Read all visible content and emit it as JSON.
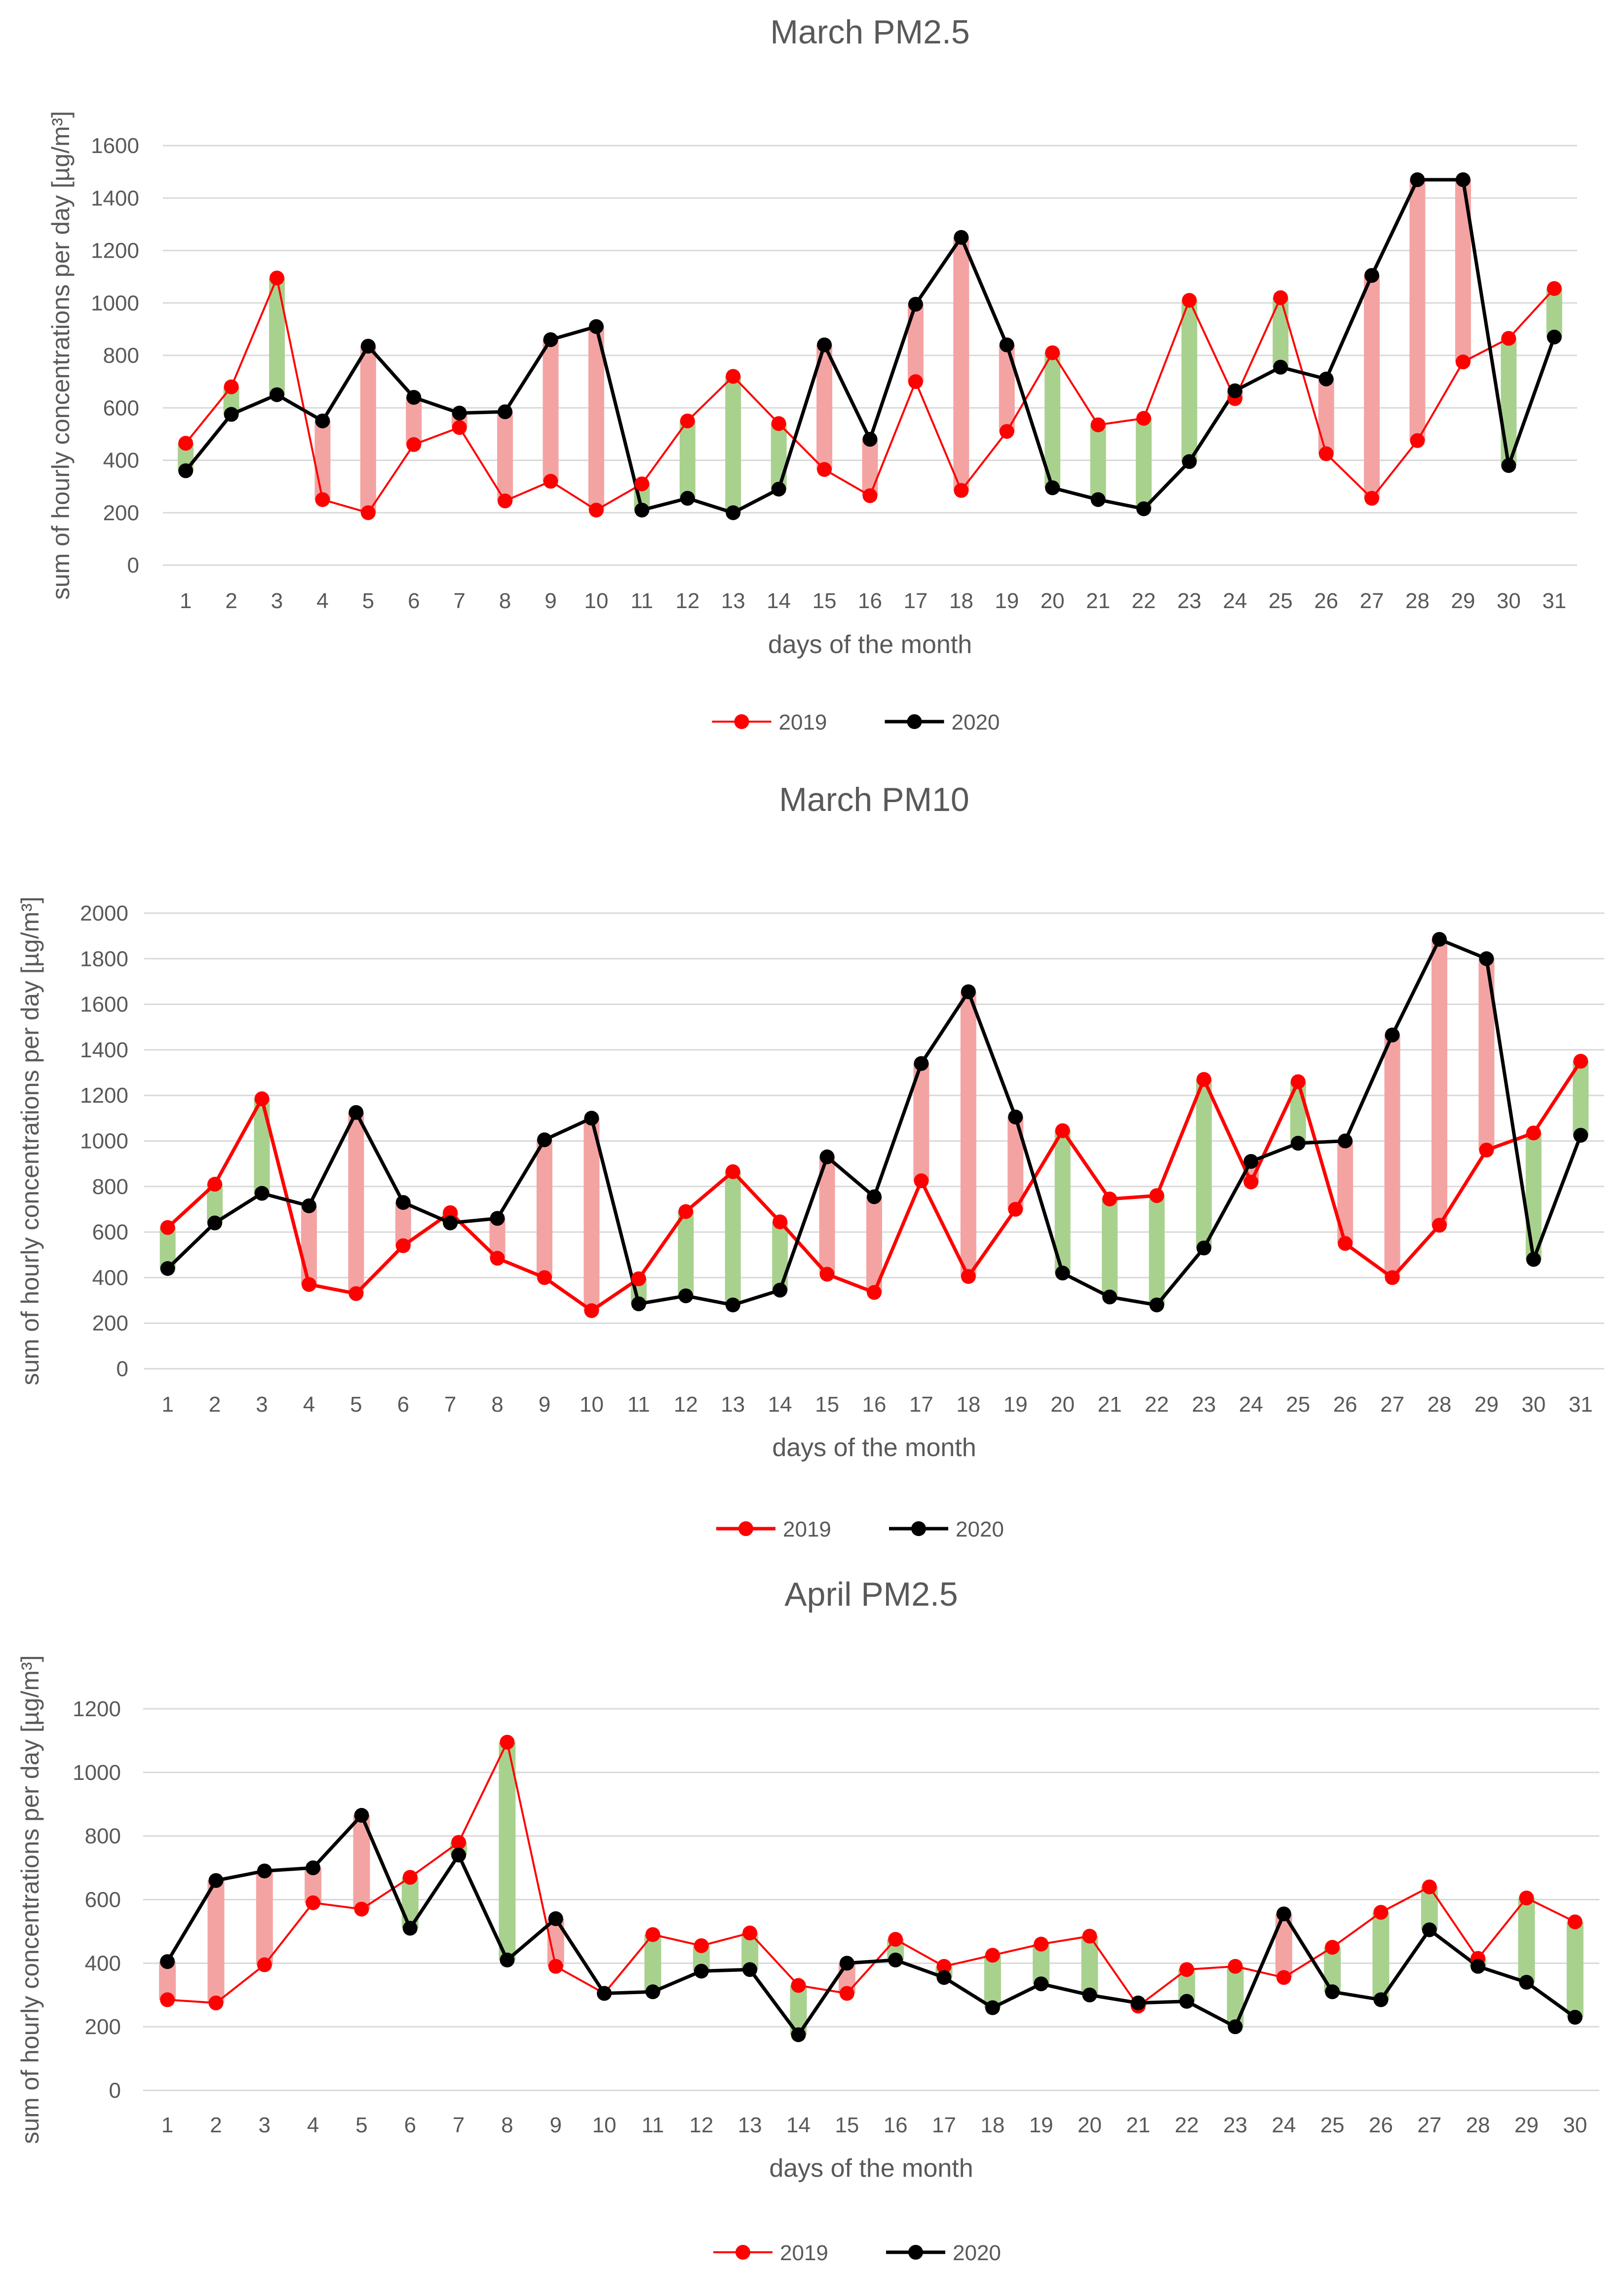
{
  "colors": {
    "series_2019": "#ff0000",
    "series_2020": "#000000",
    "increase_bar": "#f4a3a3",
    "decrease_bar": "#a9d18e",
    "grid": "#d9d9d9",
    "text": "#595959"
  },
  "chart_data": [
    {
      "type": "line",
      "title": "March PM2.5",
      "xlabel": "days of the month",
      "ylabel": "sum of hourly concentrations per day [µg/m³]",
      "ylim": [
        0,
        1600
      ],
      "ytick_step": 200,
      "ytick_labels": [
        "0",
        "200",
        "400",
        "600",
        "800",
        "1000",
        "1200",
        "1400",
        "1600"
      ],
      "grid": true,
      "legend_position": "bottom-center",
      "x": [
        1,
        2,
        3,
        4,
        5,
        6,
        7,
        8,
        9,
        10,
        11,
        12,
        13,
        14,
        15,
        16,
        17,
        18,
        19,
        20,
        21,
        22,
        23,
        24,
        25,
        26,
        27,
        28,
        29,
        30,
        31
      ],
      "series": [
        {
          "name": "2019",
          "values": [
            465,
            680,
            1095,
            250,
            200,
            460,
            525,
            245,
            320,
            210,
            310,
            550,
            720,
            540,
            365,
            265,
            700,
            285,
            510,
            810,
            535,
            560,
            1010,
            635,
            1020,
            425,
            255,
            475,
            775,
            865,
            1055
          ]
        },
        {
          "name": "2020",
          "values": [
            360,
            575,
            650,
            550,
            835,
            640,
            580,
            585,
            860,
            910,
            210,
            255,
            200,
            290,
            840,
            480,
            995,
            1250,
            840,
            295,
            250,
            215,
            395,
            665,
            755,
            710,
            1105,
            1470,
            1470,
            380,
            870
          ]
        }
      ]
    },
    {
      "type": "line",
      "title": "March PM10",
      "xlabel": "days of the month",
      "ylabel": "sum of hourly concentrations per day [µg/m³]",
      "ylim": [
        0,
        2000
      ],
      "ytick_step": 200,
      "ytick_labels": [
        "0",
        "200",
        "400",
        "600",
        "800",
        "1000",
        "1200",
        "1400",
        "1600",
        "1800",
        "2000"
      ],
      "grid": true,
      "legend_position": "bottom-center",
      "x": [
        1,
        2,
        3,
        4,
        5,
        6,
        7,
        8,
        9,
        10,
        11,
        12,
        13,
        14,
        15,
        16,
        17,
        18,
        19,
        20,
        21,
        22,
        23,
        24,
        25,
        26,
        27,
        28,
        29,
        30,
        31
      ],
      "series": [
        {
          "name": "2019",
          "values": [
            620,
            810,
            1185,
            370,
            330,
            540,
            685,
            485,
            400,
            255,
            395,
            690,
            865,
            645,
            415,
            335,
            825,
            405,
            700,
            1045,
            745,
            760,
            1270,
            820,
            1260,
            550,
            400,
            630,
            960,
            1035,
            1350
          ]
        },
        {
          "name": "2020",
          "values": [
            440,
            640,
            770,
            715,
            1125,
            730,
            640,
            660,
            1005,
            1100,
            285,
            320,
            280,
            345,
            930,
            755,
            1340,
            1655,
            1105,
            420,
            315,
            280,
            530,
            910,
            990,
            1000,
            1465,
            1885,
            1800,
            480,
            1025
          ]
        }
      ]
    },
    {
      "type": "line",
      "title": "April PM2.5",
      "xlabel": "days of the month",
      "ylabel": "sum of hourly concentrations per day [µg/m³]",
      "ylim": [
        0,
        1200
      ],
      "ytick_step": 200,
      "ytick_labels": [
        "0",
        "200",
        "400",
        "600",
        "800",
        "1000",
        "1200"
      ],
      "grid": true,
      "legend_position": "bottom-center",
      "x": [
        1,
        2,
        3,
        4,
        5,
        6,
        7,
        8,
        9,
        10,
        11,
        12,
        13,
        14,
        15,
        16,
        17,
        18,
        19,
        20,
        21,
        22,
        23,
        24,
        25,
        26,
        27,
        28,
        29,
        30
      ],
      "series": [
        {
          "name": "2019",
          "values": [
            285,
            275,
            395,
            590,
            570,
            670,
            780,
            1095,
            390,
            305,
            490,
            455,
            495,
            330,
            305,
            475,
            390,
            425,
            460,
            485,
            265,
            380,
            390,
            355,
            450,
            560,
            640,
            415,
            605,
            530
          ]
        },
        {
          "name": "2020",
          "values": [
            405,
            660,
            690,
            700,
            865,
            510,
            740,
            410,
            540,
            305,
            310,
            375,
            380,
            175,
            400,
            410,
            355,
            260,
            335,
            300,
            275,
            280,
            200,
            555,
            310,
            285,
            505,
            390,
            340,
            230
          ]
        }
      ]
    }
  ]
}
